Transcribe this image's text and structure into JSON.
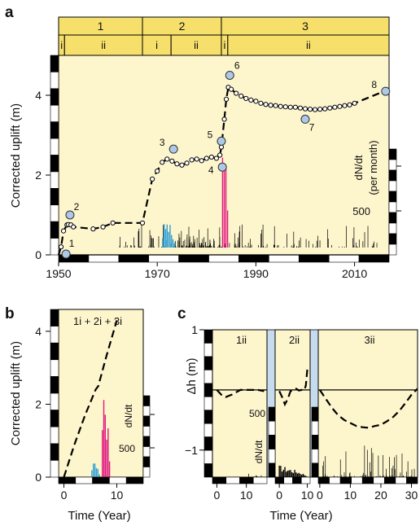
{
  "chart_data": [
    {
      "panel": "a",
      "type": "line",
      "xlim": [
        1950,
        2017
      ],
      "ylim": [
        0,
        5
      ],
      "xticks": [
        "1950",
        "1970",
        "1990",
        "2010"
      ],
      "yticks": [
        "0",
        "2",
        "4"
      ],
      "ylabel": "Corrected uplift (m)",
      "stages": [
        {
          "label": "1",
          "from": 1950,
          "to": 1967,
          "sub": [
            {
              "label": "i",
              "from": 1950,
              "to": 1951.2
            },
            {
              "label": "ii",
              "from": 1951.2,
              "to": 1967
            }
          ]
        },
        {
          "label": "2",
          "from": 1967,
          "to": 1983,
          "sub": [
            {
              "label": "i",
              "from": 1967,
              "to": 1972.8
            },
            {
              "label": "ii",
              "from": 1972.8,
              "to": 1983
            }
          ]
        },
        {
          "label": "3",
          "from": 1983,
          "to": 2017,
          "sub": [
            {
              "label": "i",
              "from": 1983,
              "to": 1984.3
            },
            {
              "label": "ii",
              "from": 1984.3,
              "to": 2017
            }
          ]
        }
      ],
      "uplift_x": [
        1950,
        1950.5,
        1951,
        1951.7,
        1952,
        1952.5,
        1953,
        1957,
        1959,
        1961,
        1967,
        1969,
        1970,
        1971,
        1972,
        1973,
        1974,
        1975,
        1976,
        1977,
        1978,
        1979,
        1980,
        1981,
        1982,
        1982.7,
        1983,
        1983.6,
        1984,
        1984.4,
        1985,
        1986,
        1987,
        1988,
        1989,
        1990,
        1991,
        1992,
        1993,
        1994,
        1995,
        1996,
        1997,
        1998,
        1999,
        2000,
        2001,
        2002,
        2003,
        2004,
        2005,
        2006,
        2007,
        2008,
        2009,
        2010,
        2016
      ],
      "uplift_y": [
        0,
        0.2,
        0.6,
        0.75,
        0.76,
        0.75,
        0.7,
        0.65,
        0.7,
        0.8,
        0.8,
        1.9,
        2.1,
        2.32,
        2.4,
        2.35,
        2.28,
        2.25,
        2.3,
        2.38,
        2.4,
        2.36,
        2.42,
        2.45,
        2.42,
        2.5,
        2.7,
        3.4,
        3.9,
        4.2,
        4.15,
        4.05,
        3.98,
        3.92,
        3.88,
        3.85,
        3.8,
        3.77,
        3.75,
        3.74,
        3.72,
        3.71,
        3.7,
        3.7,
        3.68,
        3.66,
        3.65,
        3.64,
        3.65,
        3.66,
        3.68,
        3.7,
        3.72,
        3.74,
        3.76,
        3.8,
        4.1
      ],
      "labeled_points": [
        {
          "label": "1",
          "x": 1951.5,
          "y": 0.02
        },
        {
          "label": "2",
          "x": 1952.3,
          "y": 1.0
        },
        {
          "label": "3",
          "x": 1973.3,
          "y": 2.65
        },
        {
          "label": "4",
          "x": 1983.2,
          "y": 2.2
        },
        {
          "label": "5",
          "x": 1983.0,
          "y": 2.85
        },
        {
          "label": "6",
          "x": 1984.7,
          "y": 4.5
        },
        {
          "label": "7",
          "x": 2000.0,
          "y": 3.4
        },
        {
          "label": "8",
          "x": 2016.3,
          "y": 4.1
        }
      ],
      "rate_axis": {
        "label": "dN/dt",
        "unit": "(per month)",
        "tick": "500"
      },
      "rate_bursts": [
        {
          "color": "#2e9fd6",
          "from": 1970.8,
          "to": 1973.8,
          "peak": 350
        },
        {
          "color": "#e0197e",
          "from": 1982.9,
          "to": 1984.6,
          "peak": 1380
        }
      ]
    },
    {
      "panel": "b",
      "type": "line",
      "title": "1i + 2i + 3i",
      "xlim": [
        -1,
        15
      ],
      "ylim": [
        0,
        4.6
      ],
      "xticks": [
        "0",
        "10"
      ],
      "yticks": [
        "0",
        "2",
        "4"
      ],
      "xlabel": "Time (Year)",
      "ylabel": "Corrected uplift (m)",
      "x": [
        0,
        2,
        4,
        6,
        6.5,
        8,
        10
      ],
      "y": [
        0,
        0.9,
        1.7,
        2.4,
        2.5,
        3.3,
        4.3
      ],
      "rate_axis": {
        "label": "dN/dt",
        "tick": "500"
      },
      "rate_bursts": [
        {
          "color": "#2e9fd6",
          "from": 5.0,
          "to": 7.0,
          "peak": 150
        },
        {
          "color": "#e0197e",
          "from": 7.0,
          "to": 8.9,
          "peak": 760
        }
      ]
    },
    {
      "panel": "c",
      "type": "line",
      "xlabel": "Time (Year)",
      "ylabel": "Δh (m)",
      "ylim": [
        -1.45,
        1
      ],
      "yticks": [
        "1",
        "−1"
      ],
      "rate_axis": {
        "label": "dN/dt",
        "tick": "500"
      },
      "subpanels": [
        {
          "label": "1ii",
          "xlim": [
            -1.5,
            17
          ],
          "xticks": [
            "0",
            "10"
          ],
          "x": [
            0,
            1.5,
            3,
            5,
            8,
            10,
            12,
            14,
            16
          ],
          "y": [
            0,
            -0.08,
            -0.12,
            -0.08,
            0.0,
            0.0,
            0.0,
            0.0,
            -0.02
          ]
        },
        {
          "label": "2ii",
          "xlim": [
            -1.5,
            11
          ],
          "xticks": [
            "0",
            "10"
          ],
          "x": [
            0,
            1,
            2,
            3,
            4,
            5,
            6,
            7,
            8,
            9,
            9.5,
            10
          ],
          "y": [
            -0.02,
            -0.12,
            -0.24,
            -0.15,
            -0.02,
            0.0,
            0.02,
            -0.01,
            0.0,
            0.0,
            0.08,
            0.35
          ]
        },
        {
          "label": "3ii",
          "xlim": [
            -0.5,
            32
          ],
          "xticks": [
            "0",
            "10",
            "20",
            "30"
          ],
          "x": [
            0,
            2,
            4,
            6,
            8,
            10,
            12,
            14,
            16,
            18,
            20,
            22,
            24,
            26,
            28,
            30,
            32
          ],
          "y": [
            0,
            -0.15,
            -0.3,
            -0.42,
            -0.5,
            -0.55,
            -0.6,
            -0.62,
            -0.63,
            -0.6,
            -0.58,
            -0.52,
            -0.45,
            -0.35,
            -0.22,
            -0.08,
            0.02
          ]
        }
      ]
    }
  ],
  "panel_labels": {
    "a": "a",
    "b": "b",
    "c": "c"
  },
  "colors": {
    "plate": "#fdf5cc",
    "stage_box": "#f6df6a",
    "marker": "#aec9e8",
    "burst_blue": "#2e9fd6",
    "burst_magenta": "#e0197e",
    "gap": "#c6dcee"
  }
}
